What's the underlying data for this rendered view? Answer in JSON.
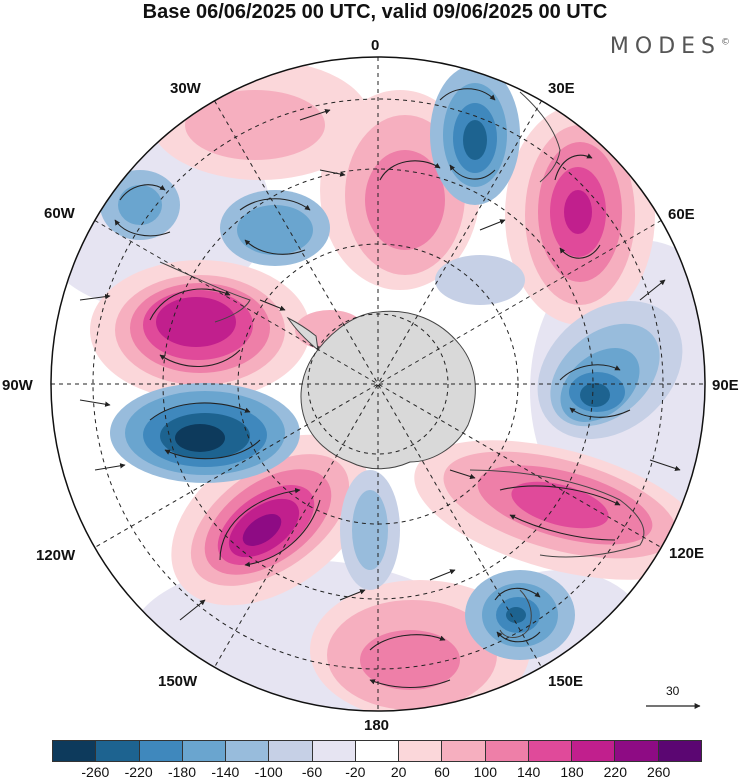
{
  "title": "Base 06/06/2025 00 UTC, valid 09/06/2025 00 UTC",
  "brand": "MODES",
  "brand_mark": "©",
  "longitude_labels": {
    "lon_0": "0",
    "lon_30e": "30E",
    "lon_60e": "60E",
    "lon_90e": "90E",
    "lon_120e": "120E",
    "lon_150e": "150E",
    "lon_180": "180",
    "lon_150w": "150W",
    "lon_120w": "120W",
    "lon_90w": "90W",
    "lon_60w": "60W",
    "lon_30w": "30W"
  },
  "wind_reference": {
    "label": "30"
  },
  "legend": {
    "ticks": [
      "-260",
      "-220",
      "-180",
      "-140",
      "-100",
      "-60",
      "-20",
      "20",
      "60",
      "100",
      "140",
      "180",
      "220",
      "260"
    ],
    "colors": [
      "#0d3a5c",
      "#1d6390",
      "#3f88bd",
      "#6aa5cf",
      "#98bcdc",
      "#c6d0e6",
      "#e6e4f2",
      "#ffffff",
      "#fbd7da",
      "#f6afbf",
      "#ee7fa8",
      "#e04a9a",
      "#c11f8d",
      "#8e0b84",
      "#5b0672"
    ]
  },
  "map": {
    "projection": "south-polar-stereographic",
    "field": "geopotential height anomaly",
    "colors": {
      "land_shade": "#d9d9d9",
      "coastline": "#444444",
      "grid": "#222222"
    }
  }
}
